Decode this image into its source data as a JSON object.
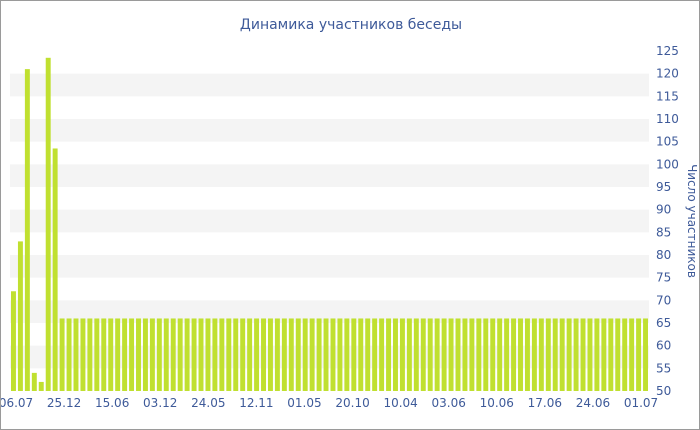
{
  "chart_data": {
    "type": "bar",
    "title": "Динамика участников беседы",
    "ylabel": "Число участников",
    "xlabel": "",
    "ylim": [
      50,
      125
    ],
    "y_ticks": [
      50,
      55,
      60,
      65,
      70,
      75,
      80,
      85,
      90,
      95,
      100,
      105,
      110,
      115,
      120,
      125
    ],
    "x_tick_labels": [
      "06.07",
      "25.12",
      "15.06",
      "03.12",
      "24.05",
      "12.11",
      "01.05",
      "20.10",
      "10.04",
      "03.06",
      "10.06",
      "17.06",
      "24.06",
      "01.07"
    ],
    "grid": "horizontal-bands",
    "bar_color": "#c0e030",
    "band_color": "#f4f4f4",
    "text_color": "#3e5a99",
    "values": [
      72,
      83,
      121,
      54,
      52,
      123.5,
      103.5,
      66,
      66,
      66,
      66,
      66,
      66,
      66,
      66,
      66,
      66,
      66,
      66,
      66,
      66,
      66,
      66,
      66,
      66,
      66,
      66,
      66,
      66,
      66,
      66,
      66,
      66,
      66,
      66,
      66,
      66,
      66,
      66,
      66,
      66,
      66,
      66,
      66,
      66,
      66,
      66,
      66,
      66,
      66,
      66,
      66,
      66,
      66,
      66,
      66,
      66,
      66,
      66,
      66,
      66,
      66,
      66,
      66,
      66,
      66,
      66,
      66,
      66,
      66,
      66,
      66,
      66,
      66,
      66,
      66,
      66,
      66,
      66,
      66,
      66,
      66,
      66,
      66,
      66,
      66,
      66,
      66,
      66,
      66,
      66,
      66
    ]
  }
}
